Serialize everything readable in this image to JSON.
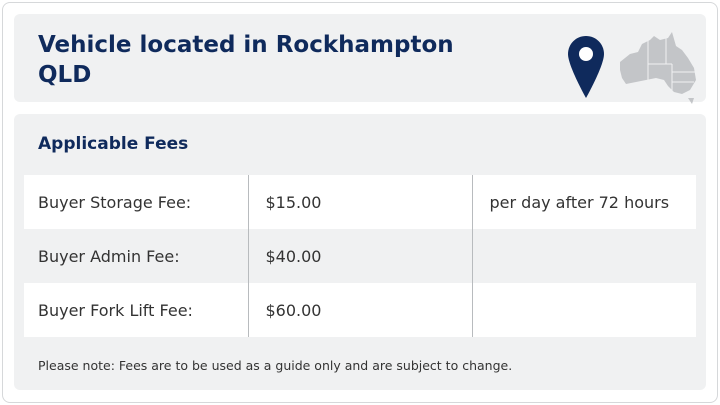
{
  "header": {
    "title": "Vehicle located in Rockhampton QLD",
    "pin_icon": "map-pin-icon",
    "map_icon": "australia-map-icon",
    "pin_color": "#0f2a5c"
  },
  "fees": {
    "title": "Applicable Fees",
    "rows": [
      {
        "label": "Buyer Storage Fee:",
        "amount": "$15.00",
        "note": "per day after 72 hours"
      },
      {
        "label": "Buyer Admin Fee:",
        "amount": "$40.00",
        "note": ""
      },
      {
        "label": "Buyer Fork Lift Fee:",
        "amount": "$60.00",
        "note": ""
      }
    ],
    "disclaimer": "Please note: Fees are to be used as a guide only and are subject to change."
  }
}
